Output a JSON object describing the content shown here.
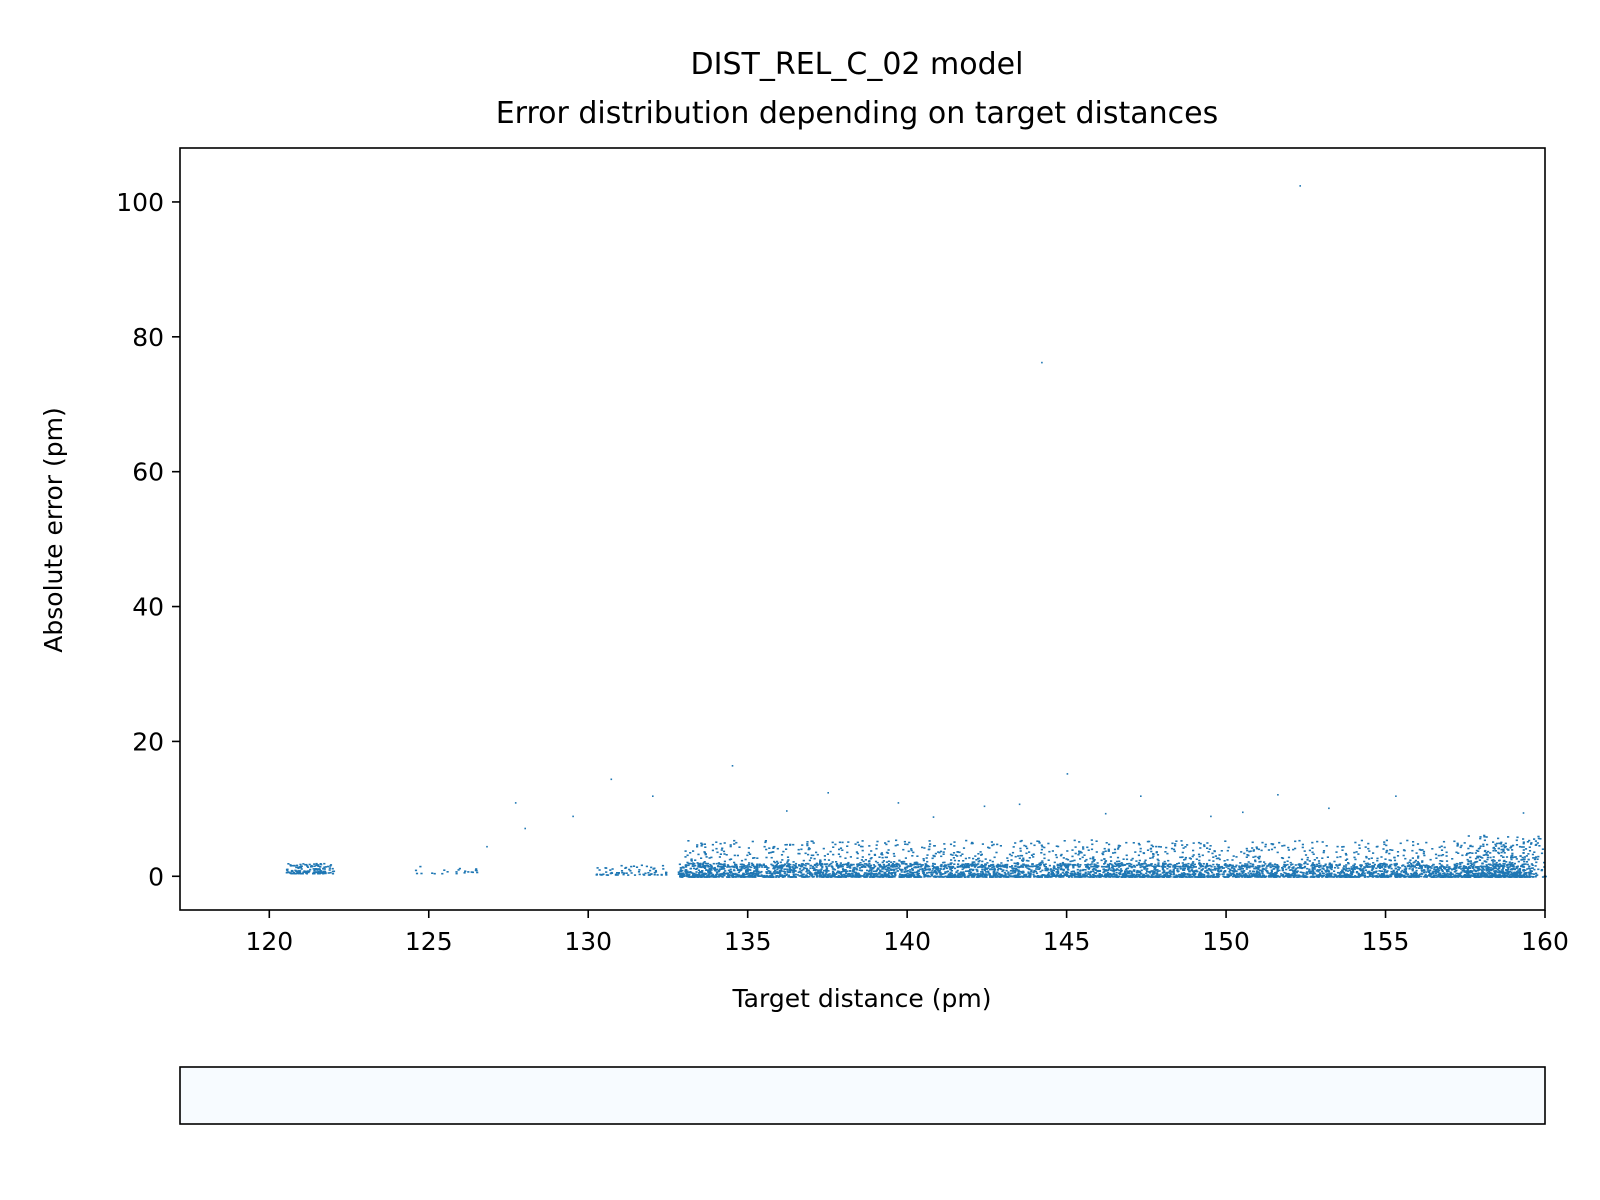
{
  "chart_data": {
    "type": "scatter",
    "title": "DIST_REL_C_02 model",
    "subtitle": "Error distribution depending on target distances",
    "xlabel": "Target distance (pm)",
    "ylabel": "Absolute error (pm)",
    "xlim": [
      117.2,
      160
    ],
    "ylim": [
      -5,
      108
    ],
    "x_ticks": [
      120,
      125,
      130,
      135,
      140,
      145,
      150,
      155,
      160
    ],
    "y_ticks": [
      0,
      20,
      40,
      60,
      80,
      100
    ],
    "grid": false,
    "color": "#1f77b4",
    "colorbar_color": "#f7fbff",
    "series": [
      {
        "clusters": [
          {
            "x": [
              120.5,
              122.0
            ],
            "y": [
              0.5,
              2.0
            ],
            "n": 150
          },
          {
            "x": [
              124.5,
              126.5
            ],
            "y": [
              0.5,
              1.6
            ],
            "n": 22
          },
          {
            "x": [
              130.2,
              132.5
            ],
            "y": [
              0.3,
              1.8
            ],
            "n": 70
          },
          {
            "x": [
              132.8,
              159.6
            ],
            "y": [
              0.0,
              2.0
            ],
            "n": 4000
          },
          {
            "x": [
              133.0,
              159.5
            ],
            "y": [
              1.5,
              5.5
            ],
            "n": 1300
          },
          {
            "x": [
              157.5,
              160.0
            ],
            "y": [
              0.0,
              6.5
            ],
            "n": 250
          }
        ],
        "outliers": [
          [
            152.3,
            102.5
          ],
          [
            144.2,
            76.3
          ],
          [
            145.0,
            15.3
          ],
          [
            134.5,
            16.5
          ],
          [
            130.7,
            14.5
          ],
          [
            137.5,
            12.5
          ],
          [
            139.7,
            11.0
          ],
          [
            151.6,
            12.2
          ],
          [
            155.3,
            12.0
          ],
          [
            127.7,
            11.0
          ],
          [
            132.0,
            12.0
          ],
          [
            147.3,
            12.0
          ],
          [
            159.3,
            9.5
          ],
          [
            149.5,
            9.0
          ],
          [
            142.4,
            10.5
          ],
          [
            136.2,
            9.8
          ],
          [
            143.5,
            10.8
          ],
          [
            153.2,
            10.2
          ],
          [
            129.5,
            9.0
          ],
          [
            140.8,
            8.9
          ],
          [
            146.2,
            9.4
          ],
          [
            150.5,
            9.6
          ],
          [
            128.0,
            7.2
          ],
          [
            126.8,
            4.5
          ]
        ]
      }
    ]
  }
}
